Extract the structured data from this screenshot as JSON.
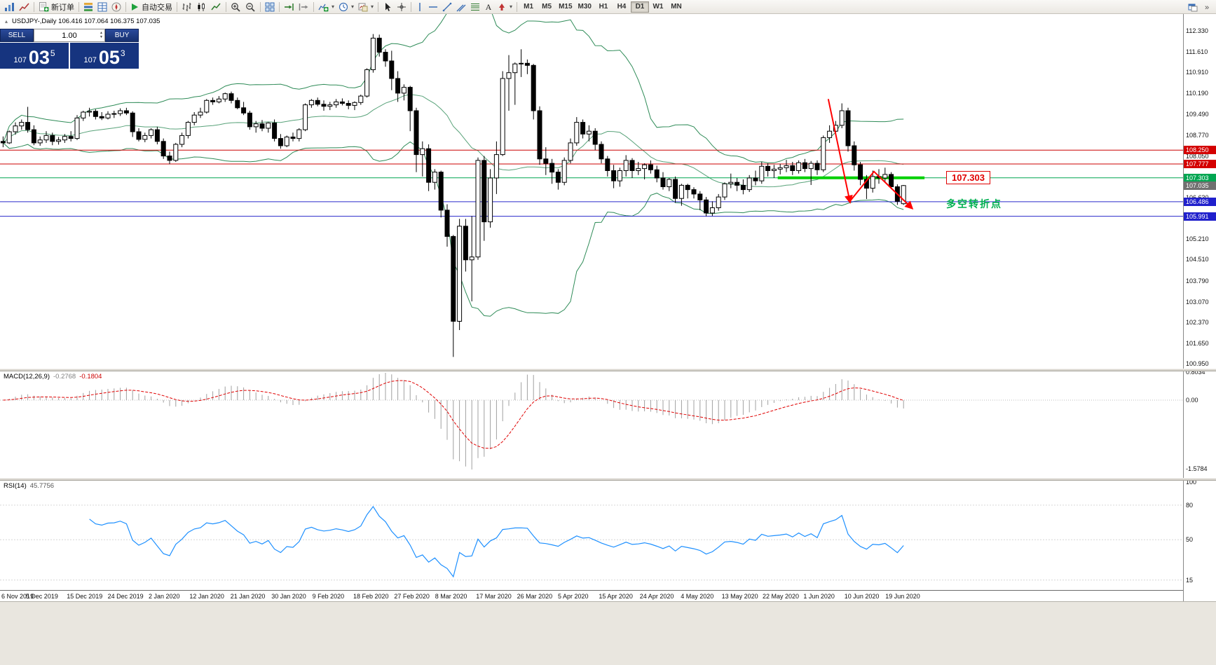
{
  "icons": {
    "dropdown_caret": "▾",
    "collapse_triangle": "▴",
    "spinner_up": "▲",
    "spinner_down": "▼"
  },
  "toolbar": {
    "items": [
      {
        "icon": "bar-chart-window-icon"
      },
      {
        "icon": "tick-chart-icon"
      },
      {
        "sep": true
      },
      {
        "icon": "new-order-icon",
        "label": "新订单"
      },
      {
        "sep": true
      },
      {
        "icon": "market-watch-icon"
      },
      {
        "icon": "data-window-icon"
      },
      {
        "icon": "navigator-icon"
      },
      {
        "sep": true
      },
      {
        "icon": "autotrade-icon",
        "label": "自动交易"
      },
      {
        "sep": true
      },
      {
        "icon": "chart-bars-icon"
      },
      {
        "icon": "chart-candles-icon"
      },
      {
        "icon": "chart-line-icon"
      },
      {
        "sep": true
      },
      {
        "icon": "zoom-in-icon"
      },
      {
        "icon": "zoom-out-icon"
      },
      {
        "sep": true
      },
      {
        "icon": "tile-windows-icon"
      },
      {
        "sep": true
      },
      {
        "icon": "auto-scroll-icon"
      },
      {
        "icon": "chart-shift-icon"
      },
      {
        "sep": true
      },
      {
        "icon": "indicators-icon",
        "dropdown": true
      },
      {
        "icon": "periods-icon",
        "dropdown": true
      },
      {
        "icon": "templates-icon",
        "dropdown": true
      },
      {
        "sep": true
      },
      {
        "icon": "cursor-icon"
      },
      {
        "icon": "crosshair-icon"
      },
      {
        "sep": true
      },
      {
        "icon": "vertical-line-icon"
      },
      {
        "icon": "horizontal-line-icon"
      },
      {
        "icon": "trendline-icon"
      },
      {
        "icon": "channel-icon"
      },
      {
        "icon": "fibonacci-icon"
      },
      {
        "icon": "text-icon"
      },
      {
        "icon": "arrow-tools-icon",
        "dropdown": true
      },
      {
        "sep": true
      }
    ],
    "timeframes": [
      "M1",
      "M5",
      "M15",
      "M30",
      "H1",
      "H4",
      "D1",
      "W1",
      "MN"
    ],
    "active_timeframe": "D1",
    "right_items": [
      {
        "icon": "new-window-icon"
      },
      {
        "icon": "overflow-icon"
      }
    ]
  },
  "chart": {
    "title": "USDJPY-,Daily 106.416 107.064 106.375 107.035"
  },
  "trade_panel": {
    "sell_label": "SELL",
    "buy_label": "BUY",
    "lot_size": "1.00",
    "bid_main": "107",
    "bid_pips": "03",
    "bid_sup": "5",
    "ask_main": "107",
    "ask_pips": "05",
    "ask_sup": "3"
  },
  "annotations": {
    "level_label": "107.303",
    "turning_point_text": "多空转折点"
  },
  "macd": {
    "name": "MACD(12,26,9)",
    "value1": "-0.2768",
    "value2": "-0.1804",
    "axis": [
      "0.8034",
      "0.00",
      "-1.5784"
    ]
  },
  "rsi": {
    "name": "RSI(14)",
    "value": "45.7756",
    "axis": [
      100,
      80,
      50,
      15
    ]
  },
  "price_axis": {
    "labels": [
      "112.330",
      "111.610",
      "110.910",
      "110.190",
      "109.490",
      "108.770",
      "108.050",
      "107.330",
      "106.630",
      "105.910",
      "105.210",
      "104.510",
      "103.790",
      "103.070",
      "102.370",
      "101.650",
      "100.950"
    ],
    "tags": [
      {
        "text": "108.250",
        "price": 108.25,
        "bg": "#d40000"
      },
      {
        "text": "107.777",
        "price": 107.777,
        "bg": "#d40000"
      },
      {
        "text": "107.303",
        "price": 107.303,
        "bg": "#00a651"
      },
      {
        "text": "107.035",
        "price": 107.035,
        "bg": "#707070"
      },
      {
        "text": "106.486",
        "price": 106.486,
        "bg": "#2020cc"
      },
      {
        "text": "105.991",
        "price": 105.991,
        "bg": "#2020cc"
      }
    ]
  },
  "time_axis": {
    "labels": [
      "6 Nov 2019",
      "5 Dec 2019",
      "15 Dec 2019",
      "24 Dec 2019",
      "2 Jan 2020",
      "12 Jan 2020",
      "21 Jan 2020",
      "30 Jan 2020",
      "9 Feb 2020",
      "18 Feb 2020",
      "27 Feb 2020",
      "8 Mar 2020",
      "17 Mar 2020",
      "26 Mar 2020",
      "5 Apr 2020",
      "15 Apr 2020",
      "24 Apr 2020",
      "4 May 2020",
      "13 May 2020",
      "22 May 2020",
      "1 Jun 2020",
      "10 Jun 2020",
      "19 Jun 2020"
    ]
  },
  "chart_data": {
    "type": "candlestick",
    "symbol": "USDJPY-",
    "timeframe": "Daily",
    "ohlc_display": {
      "open": "106.416",
      "high": "107.064",
      "low": "106.375",
      "close": "107.035"
    },
    "price_range": [
      100.95,
      112.33
    ],
    "overlays": {
      "bollinger": {
        "period": 20,
        "deviation": 2,
        "color": "#2e8b57"
      }
    },
    "levels": [
      {
        "price": 108.25,
        "color": "#cc0000",
        "width": 1
      },
      {
        "price": 107.777,
        "color": "#cc0000",
        "width": 1
      },
      {
        "price": 107.303,
        "color": "#00a651",
        "width": 1
      },
      {
        "price": 106.486,
        "color": "#2a2acc",
        "width": 1
      },
      {
        "price": 105.991,
        "color": "#2a2acc",
        "width": 1
      }
    ],
    "highlight_segment": {
      "price": 107.303,
      "from_bar": 125.6,
      "to_bar": 149.4,
      "color": "#00d000",
      "width": 4
    },
    "arrows": [
      {
        "points": [
          [
            133.8,
            110.0
          ],
          [
            137.3,
            106.5
          ]
        ],
        "head": true
      },
      {
        "points": [
          [
            137.3,
            106.5
          ],
          [
            141.2,
            107.52
          ],
          [
            147.3,
            106.28
          ]
        ],
        "head": true
      }
    ],
    "indicators": {
      "macd": {
        "fast": 12,
        "slow": 26,
        "signal": 9,
        "histogram_color": "#a0a0a0",
        "signal_color": "#e00000",
        "current": "-0.2768 -0.1804",
        "range": [
          "0.8034",
          "-1.5784"
        ]
      },
      "rsi": {
        "period": 14,
        "color": "#1e90ff",
        "current": "45.7756",
        "levels": [
          80,
          50,
          15
        ]
      }
    },
    "candles": [
      [
        108.55,
        108.72,
        108.35,
        108.5
      ],
      [
        108.5,
        108.92,
        108.46,
        108.88
      ],
      [
        108.88,
        109.2,
        108.78,
        109.08
      ],
      [
        109.08,
        109.3,
        108.95,
        109.2
      ],
      [
        109.2,
        109.73,
        108.85,
        108.95
      ],
      [
        108.95,
        109.1,
        108.42,
        108.5
      ],
      [
        108.5,
        108.72,
        108.4,
        108.6
      ],
      [
        108.6,
        108.9,
        108.5,
        108.75
      ],
      [
        108.75,
        108.85,
        108.42,
        108.55
      ],
      [
        108.55,
        108.7,
        108.44,
        108.6
      ],
      [
        108.6,
        108.8,
        108.5,
        108.72
      ],
      [
        108.72,
        108.9,
        108.55,
        108.65
      ],
      [
        108.65,
        109.45,
        108.6,
        109.35
      ],
      [
        109.35,
        109.6,
        109.25,
        109.55
      ],
      [
        109.55,
        109.7,
        109.4,
        109.58
      ],
      [
        109.58,
        109.65,
        109.3,
        109.4
      ],
      [
        109.4,
        109.55,
        109.28,
        109.35
      ],
      [
        109.35,
        109.58,
        109.3,
        109.48
      ],
      [
        109.48,
        109.6,
        109.35,
        109.5
      ],
      [
        109.5,
        109.68,
        109.42,
        109.6
      ],
      [
        109.6,
        109.7,
        109.45,
        109.52
      ],
      [
        109.52,
        109.58,
        108.7,
        108.88
      ],
      [
        108.88,
        109.0,
        108.55,
        108.62
      ],
      [
        108.62,
        108.85,
        108.52,
        108.75
      ],
      [
        108.75,
        109.0,
        108.65,
        108.95
      ],
      [
        108.95,
        109.05,
        108.45,
        108.55
      ],
      [
        108.55,
        108.65,
        107.95,
        108.05
      ],
      [
        108.05,
        108.2,
        107.77,
        107.9
      ],
      [
        107.9,
        108.5,
        107.85,
        108.45
      ],
      [
        108.45,
        108.85,
        108.35,
        108.75
      ],
      [
        108.75,
        109.25,
        108.65,
        109.2
      ],
      [
        109.2,
        109.55,
        109.1,
        109.45
      ],
      [
        109.45,
        109.7,
        109.35,
        109.55
      ],
      [
        109.55,
        110.0,
        109.5,
        109.95
      ],
      [
        109.95,
        110.05,
        109.8,
        109.9
      ],
      [
        109.9,
        110.1,
        109.85,
        110.0
      ],
      [
        110.0,
        110.22,
        109.9,
        110.18
      ],
      [
        110.18,
        110.25,
        109.85,
        109.95
      ],
      [
        109.95,
        110.05,
        109.65,
        109.7
      ],
      [
        109.7,
        109.9,
        109.45,
        109.52
      ],
      [
        109.52,
        109.6,
        108.95,
        109.05
      ],
      [
        109.05,
        109.25,
        108.85,
        109.15
      ],
      [
        109.15,
        109.28,
        108.9,
        109.0
      ],
      [
        109.0,
        109.2,
        108.85,
        109.18
      ],
      [
        109.18,
        109.3,
        108.55,
        108.65
      ],
      [
        108.65,
        108.8,
        108.3,
        108.4
      ],
      [
        108.4,
        108.75,
        108.35,
        108.7
      ],
      [
        108.7,
        108.85,
        108.55,
        108.65
      ],
      [
        108.65,
        109.0,
        108.55,
        108.95
      ],
      [
        108.95,
        109.85,
        108.9,
        109.8
      ],
      [
        109.8,
        110.0,
        109.7,
        109.95
      ],
      [
        109.95,
        110.05,
        109.75,
        109.82
      ],
      [
        109.82,
        109.95,
        109.6,
        109.75
      ],
      [
        109.75,
        109.9,
        109.62,
        109.8
      ],
      [
        109.8,
        110.0,
        109.7,
        109.9
      ],
      [
        109.9,
        110.02,
        109.78,
        109.85
      ],
      [
        109.85,
        109.95,
        109.65,
        109.78
      ],
      [
        109.78,
        109.92,
        109.62,
        109.88
      ],
      [
        109.88,
        110.15,
        109.8,
        110.1
      ],
      [
        110.1,
        111.05,
        110.05,
        111.0
      ],
      [
        111.0,
        112.22,
        110.9,
        112.08
      ],
      [
        112.08,
        112.2,
        111.45,
        111.6
      ],
      [
        111.6,
        111.7,
        111.1,
        111.3
      ],
      [
        111.3,
        111.65,
        110.3,
        110.7
      ],
      [
        110.7,
        110.95,
        109.9,
        110.2
      ],
      [
        110.2,
        110.5,
        109.95,
        110.4
      ],
      [
        110.4,
        110.45,
        108.9,
        109.6
      ],
      [
        109.6,
        109.7,
        107.5,
        108.1
      ],
      [
        108.1,
        108.55,
        107.35,
        108.3
      ],
      [
        108.3,
        108.45,
        106.85,
        107.15
      ],
      [
        107.15,
        107.6,
        106.9,
        107.5
      ],
      [
        107.5,
        107.55,
        105.95,
        106.2
      ],
      [
        106.2,
        106.4,
        104.95,
        105.3
      ],
      [
        105.3,
        105.35,
        101.18,
        102.4
      ],
      [
        102.4,
        105.9,
        102.1,
        105.65
      ],
      [
        105.65,
        105.9,
        104.1,
        104.5
      ],
      [
        104.5,
        106.0,
        103.08,
        104.6
      ],
      [
        104.6,
        108.0,
        104.5,
        107.9
      ],
      [
        107.9,
        108.05,
        105.15,
        105.8
      ],
      [
        105.8,
        107.6,
        105.6,
        107.3
      ],
      [
        107.3,
        108.55,
        106.75,
        108.1
      ],
      [
        108.1,
        110.95,
        108.05,
        110.7
      ],
      [
        110.7,
        111.5,
        109.6,
        110.9
      ],
      [
        110.9,
        111.25,
        109.8,
        111.2
      ],
      [
        111.2,
        111.7,
        110.75,
        111.22
      ],
      [
        111.22,
        111.35,
        110.85,
        111.15
      ],
      [
        111.15,
        111.2,
        109.3,
        109.6
      ],
      [
        109.6,
        109.75,
        107.75,
        107.95
      ],
      [
        107.95,
        108.35,
        107.4,
        107.8
      ],
      [
        107.8,
        107.95,
        107.1,
        107.5
      ],
      [
        107.5,
        107.6,
        106.9,
        107.15
      ],
      [
        107.15,
        108.0,
        107.05,
        107.9
      ],
      [
        107.9,
        108.65,
        107.8,
        108.5
      ],
      [
        108.5,
        109.38,
        108.4,
        109.2
      ],
      [
        109.2,
        109.3,
        108.65,
        108.8
      ],
      [
        108.8,
        109.1,
        108.55,
        108.9
      ],
      [
        108.9,
        109.0,
        108.25,
        108.45
      ],
      [
        108.45,
        108.55,
        107.8,
        107.95
      ],
      [
        107.95,
        108.05,
        107.35,
        107.55
      ],
      [
        107.55,
        107.75,
        106.95,
        107.2
      ],
      [
        107.2,
        107.65,
        107.0,
        107.55
      ],
      [
        107.55,
        108.08,
        107.35,
        107.9
      ],
      [
        107.9,
        107.98,
        107.3,
        107.55
      ],
      [
        107.55,
        107.85,
        107.4,
        107.62
      ],
      [
        107.62,
        107.8,
        107.25,
        107.75
      ],
      [
        107.75,
        107.9,
        107.45,
        107.58
      ],
      [
        107.58,
        107.72,
        107.15,
        107.3
      ],
      [
        107.3,
        107.5,
        106.9,
        107.0
      ],
      [
        107.0,
        107.3,
        106.85,
        107.25
      ],
      [
        107.25,
        107.35,
        106.45,
        106.6
      ],
      [
        106.6,
        107.1,
        106.35,
        107.05
      ],
      [
        107.05,
        107.1,
        106.6,
        106.9
      ],
      [
        106.9,
        106.98,
        106.6,
        106.75
      ],
      [
        106.75,
        106.85,
        106.2,
        106.55
      ],
      [
        106.55,
        106.65,
        105.99,
        106.1
      ],
      [
        106.1,
        106.5,
        106.0,
        106.28
      ],
      [
        106.28,
        106.75,
        106.18,
        106.65
      ],
      [
        106.65,
        107.15,
        106.55,
        107.1
      ],
      [
        107.1,
        107.45,
        106.95,
        107.15
      ],
      [
        107.15,
        107.3,
        106.85,
        107.05
      ],
      [
        107.05,
        107.25,
        106.74,
        106.9
      ],
      [
        106.9,
        107.4,
        106.82,
        107.3
      ],
      [
        107.3,
        107.55,
        107.05,
        107.2
      ],
      [
        107.2,
        107.85,
        107.1,
        107.7
      ],
      [
        107.7,
        107.8,
        107.35,
        107.55
      ],
      [
        107.55,
        107.75,
        107.3,
        107.6
      ],
      [
        107.6,
        107.78,
        107.42,
        107.65
      ],
      [
        107.65,
        107.92,
        107.5,
        107.72
      ],
      [
        107.72,
        107.85,
        107.4,
        107.55
      ],
      [
        107.55,
        107.9,
        107.45,
        107.82
      ],
      [
        107.82,
        107.95,
        107.5,
        107.62
      ],
      [
        107.62,
        107.88,
        107.06,
        107.8
      ],
      [
        107.8,
        107.9,
        107.4,
        107.58
      ],
      [
        107.58,
        108.75,
        107.5,
        108.68
      ],
      [
        108.68,
        109.1,
        108.5,
        108.9
      ],
      [
        108.9,
        109.25,
        108.8,
        109.1
      ],
      [
        109.1,
        109.85,
        109.0,
        109.6
      ],
      [
        109.6,
        109.7,
        108.2,
        108.4
      ],
      [
        108.4,
        108.55,
        107.55,
        107.75
      ],
      [
        107.75,
        107.85,
        107.05,
        107.25
      ],
      [
        107.25,
        107.4,
        106.58,
        106.95
      ],
      [
        106.95,
        107.55,
        106.8,
        107.35
      ],
      [
        107.35,
        107.6,
        107.1,
        107.3
      ],
      [
        107.3,
        107.65,
        107.15,
        107.42
      ],
      [
        107.42,
        107.5,
        106.92,
        107.0
      ],
      [
        107.0,
        107.08,
        106.38,
        106.5
      ],
      [
        106.42,
        107.06,
        106.38,
        107.04
      ]
    ]
  }
}
